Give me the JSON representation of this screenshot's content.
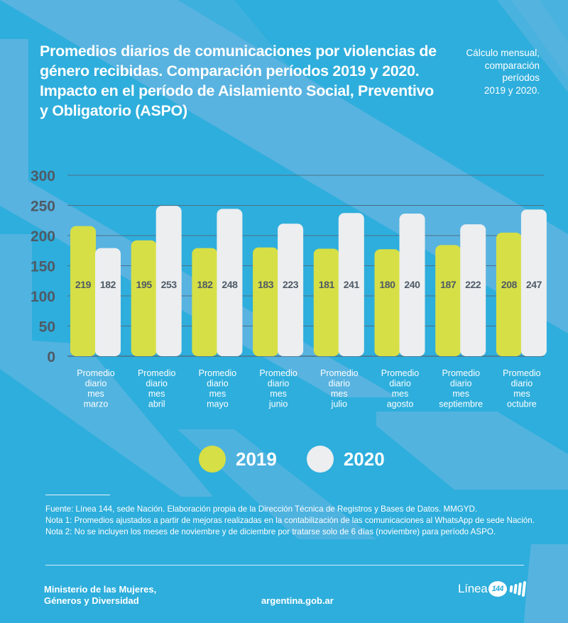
{
  "header": {
    "title": "Promedios diarios de comunicaciones por violencias de género recibidas. Comparación períodos 2019 y 2020. Impacto en el período de Aislamiento Social, Preventivo y Obligatorio (ASPO)",
    "subtitle_lines": [
      "Cálculo mensual,",
      "comparación",
      "períodos",
      "2019 y 2020."
    ]
  },
  "colors": {
    "background": "#2eaedc",
    "stripe": "#5db4e0",
    "series_2019": "#d6df45",
    "series_2020": "#eceef0",
    "axis_text": "#4f5a66",
    "gridline": "#4c7088",
    "value_text": "#4f5a66"
  },
  "chart_data": {
    "type": "bar",
    "title": "Promedios diarios de comunicaciones por violencias de género recibidas. Comparación períodos 2019 y 2020",
    "xlabel": "",
    "ylabel": "",
    "ylim": [
      0,
      300
    ],
    "yticks": [
      0,
      50,
      100,
      150,
      200,
      250,
      300
    ],
    "grid": true,
    "legend_position": "bottom-center",
    "categories": [
      [
        "Promedio",
        "diario",
        "mes",
        "marzo"
      ],
      [
        "Promedio",
        "diario",
        "mes",
        "abril"
      ],
      [
        "Promedio",
        "diario",
        "mes",
        "mayo"
      ],
      [
        "Promedio",
        "diario",
        "mes",
        "junio"
      ],
      [
        "Promedio",
        "diario",
        "mes",
        "julio"
      ],
      [
        "Promedio",
        "diario",
        "mes",
        "agosto"
      ],
      [
        "Promedio",
        "diario",
        "mes",
        "septiembre"
      ],
      [
        "Promedio",
        "diario",
        "mes",
        "octubre"
      ]
    ],
    "series": [
      {
        "name": "2019",
        "values": [
          219,
          195,
          182,
          183,
          181,
          180,
          187,
          208
        ]
      },
      {
        "name": "2020",
        "values": [
          182,
          253,
          248,
          223,
          241,
          240,
          222,
          247
        ]
      }
    ]
  },
  "legend": [
    {
      "label": "2019"
    },
    {
      "label": "2020"
    }
  ],
  "notes": {
    "source": "Fuente: Línea 144, sede Nación. Elaboración propia de la Dirección Técnica de Registros y Bases de Datos. MMGYD.",
    "note1": "Nota 1: Promedios ajustados a partir de mejoras realizadas en la contabilización de las comunicaciones al WhatsApp de sede Nación.",
    "note2": "Nota 2: No se incluyen los meses de noviembre y de diciembre por tratarse solo de 6 días (noviembre) para período ASPO."
  },
  "footer": {
    "ministry_line1": "Ministerio de las Mujeres,",
    "ministry_line2": "Géneros y Diversidad",
    "website": "argentina.gob.ar",
    "logo_text": "Línea",
    "logo_number": "144"
  }
}
